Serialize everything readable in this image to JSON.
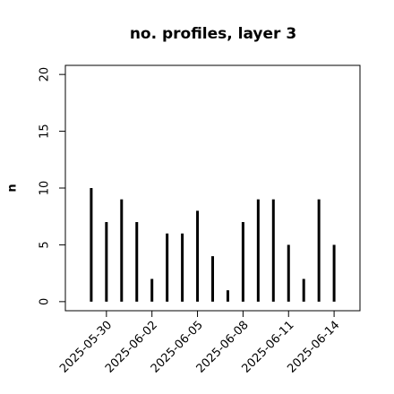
{
  "chart_data": {
    "type": "bar",
    "title": "no. profiles, layer 3",
    "y_label": "n",
    "x": [
      "2025-05-29",
      "2025-05-30",
      "2025-05-31",
      "2025-06-01",
      "2025-06-02",
      "2025-06-03",
      "2025-06-04",
      "2025-06-05",
      "2025-06-06",
      "2025-06-07",
      "2025-06-08",
      "2025-06-09",
      "2025-06-10",
      "2025-06-11",
      "2025-06-12",
      "2025-06-13",
      "2025-06-14"
    ],
    "values": [
      10,
      7,
      9,
      7,
      2,
      6,
      6,
      8,
      4,
      1,
      7,
      9,
      9,
      5,
      2,
      9,
      5
    ],
    "color": "#000000",
    "xlim": [
      "2025-05-27",
      "2025-06-16"
    ],
    "xticks": [
      "2025-05-30",
      "2025-06-02",
      "2025-06-05",
      "2025-06-08",
      "2025-06-11",
      "2025-06-14"
    ],
    "xtick_label_colors": [
      "#000000",
      "#000000",
      "#228b22",
      "#000000",
      "#000000",
      "#000000"
    ],
    "ylim": [
      -0.8,
      20.8
    ],
    "yticks": [
      0,
      5,
      10,
      15,
      20
    ]
  }
}
